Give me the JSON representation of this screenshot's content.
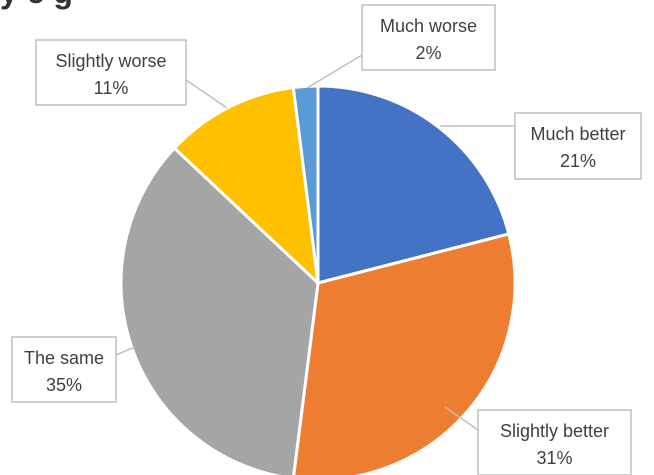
{
  "title_fragment": "y c        g",
  "chart_data": {
    "type": "pie",
    "start_angle_deg": 0,
    "direction": "clockwise",
    "slices": [
      {
        "label": "Much better",
        "value": 21,
        "display": "21%",
        "color": "#4472C4"
      },
      {
        "label": "Slightly better",
        "value": 31,
        "display": "31%",
        "color": "#ED7D31"
      },
      {
        "label": "The same",
        "value": 35,
        "display": "35%",
        "color": "#A5A5A5"
      },
      {
        "label": "Slightly worse",
        "value": 11,
        "display": "11%",
        "color": "#FFC000"
      },
      {
        "label": "Much worse",
        "value": 2,
        "display": "2%",
        "color": "#5B9BD5"
      }
    ],
    "callout_border_color": "#BFBFBF",
    "slice_border_color": "#FFFFFF"
  }
}
